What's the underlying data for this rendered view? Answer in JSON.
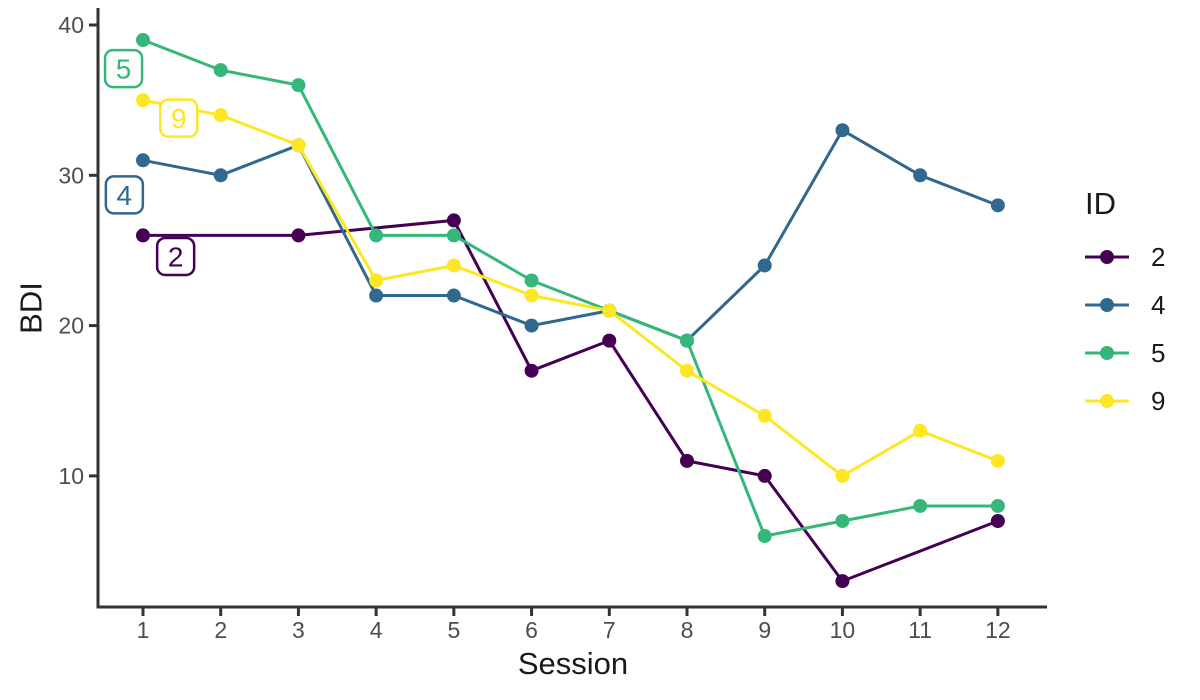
{
  "chart_data": {
    "type": "line",
    "title": "",
    "xlabel": "Session",
    "ylabel": "BDI",
    "x": [
      1,
      2,
      3,
      4,
      5,
      6,
      7,
      8,
      9,
      10,
      11,
      12
    ],
    "x_ticks": [
      1,
      2,
      3,
      4,
      5,
      6,
      7,
      8,
      9,
      10,
      11,
      12
    ],
    "y_ticks": [
      10,
      20,
      30,
      40
    ],
    "xlim": [
      0.4,
      12.6
    ],
    "ylim": [
      1.3,
      41.1
    ],
    "grid": "off",
    "series": [
      {
        "name": "2",
        "color": "#440154",
        "values": [
          26,
          null,
          26,
          null,
          27,
          17,
          19,
          11,
          10,
          3,
          null,
          7
        ]
      },
      {
        "name": "4",
        "color": "#31688E",
        "values": [
          31,
          30,
          32,
          22,
          22,
          20,
          21,
          19,
          24,
          33,
          30,
          28
        ]
      },
      {
        "name": "5",
        "color": "#35B779",
        "values": [
          39,
          37,
          36,
          26,
          26,
          23,
          21,
          19,
          6,
          7,
          8,
          8
        ]
      },
      {
        "name": "9",
        "color": "#FDE725",
        "values": [
          35,
          34,
          32,
          23,
          24,
          22,
          21,
          17,
          14,
          10,
          13,
          11
        ]
      }
    ],
    "direct_labels": [
      {
        "text": "5",
        "x": 0.75,
        "y": 37.1
      },
      {
        "text": "9",
        "x": 1.46,
        "y": 33.8
      },
      {
        "text": "4",
        "x": 0.76,
        "y": 28.7
      },
      {
        "text": "2",
        "x": 1.42,
        "y": 24.6
      }
    ],
    "legend": {
      "title": "ID",
      "position": "right",
      "entries": [
        "2",
        "4",
        "5",
        "9"
      ]
    },
    "axis_color": "#333333",
    "tick_label_color": "#4d4d4d"
  }
}
